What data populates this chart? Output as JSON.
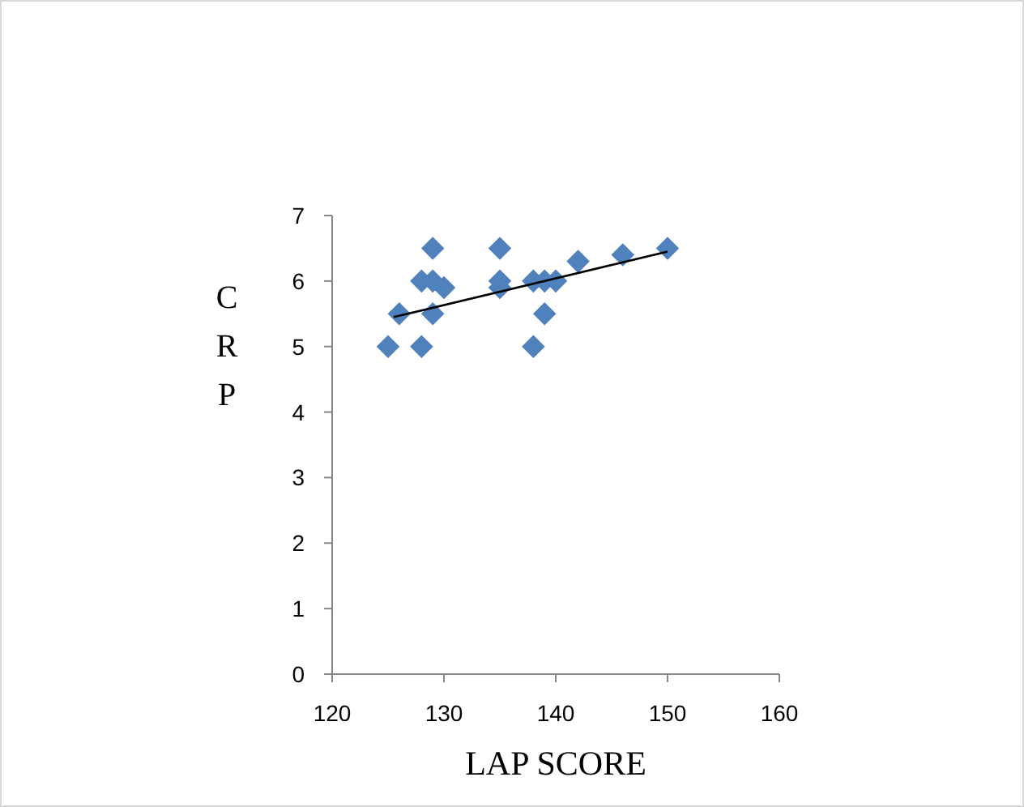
{
  "chart_data": {
    "type": "scatter",
    "xlabel": "LAP SCORE",
    "ylabel": "CRP",
    "xlim": [
      120,
      160
    ],
    "xticks": [
      120,
      130,
      140,
      150,
      160
    ],
    "ylim": [
      0,
      7
    ],
    "yticks": [
      0,
      1,
      2,
      3,
      4,
      5,
      6,
      7
    ],
    "grid": false,
    "marker": "diamond",
    "series": [
      {
        "color": "#4f81bd",
        "x": [
          125,
          126,
          128,
          128,
          129,
          129,
          129,
          130,
          135,
          135,
          135,
          138,
          138,
          139,
          139,
          140,
          142,
          146,
          150
        ],
        "values": [
          5,
          5.5,
          6,
          5,
          6.5,
          6,
          5.5,
          5.9,
          6.5,
          6,
          5.9,
          6,
          5,
          6,
          5.5,
          6,
          6.3,
          6.4,
          6.5
        ]
      },
      {
        "type": "line",
        "color": "#000000",
        "marker": "none",
        "x": [
          125.5,
          150
        ],
        "values": [
          5.45,
          6.45
        ]
      }
    ]
  }
}
